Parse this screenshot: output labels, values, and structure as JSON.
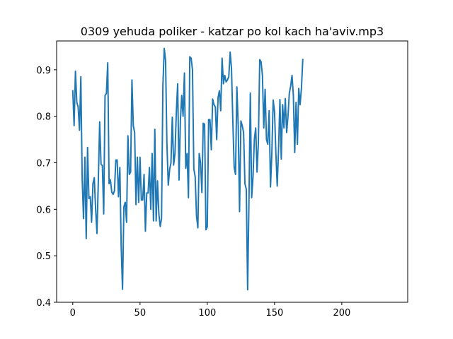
{
  "chart_data": {
    "type": "line",
    "title": "0309 yehuda poliker - katzar po kol kach ha'aviv.mp3",
    "xlabel": "",
    "ylabel": "",
    "xlim": [
      -12,
      249
    ],
    "ylim": [
      0.4,
      0.962
    ],
    "x_ticks": [
      0,
      50,
      100,
      150,
      200
    ],
    "y_ticks": [
      0.4,
      0.5,
      0.6,
      0.7,
      0.8,
      0.9
    ],
    "y_tick_labels": [
      "0.4",
      "0.5",
      "0.6",
      "0.7",
      "0.8",
      "0.9"
    ],
    "grid": false,
    "legend": "none",
    "line_color": "#1f77b4",
    "series": [
      {
        "values": [
          0.855,
          0.78,
          0.897,
          0.83,
          0.82,
          0.77,
          0.885,
          0.665,
          0.58,
          0.712,
          0.537,
          0.733,
          0.623,
          0.627,
          0.572,
          0.655,
          0.668,
          0.6,
          0.548,
          0.66,
          0.788,
          0.697,
          0.694,
          0.59,
          0.845,
          0.849,
          0.915,
          0.655,
          0.663,
          0.637,
          0.632,
          0.64,
          0.706,
          0.706,
          0.627,
          0.69,
          0.52,
          0.428,
          0.605,
          0.615,
          0.572,
          0.758,
          0.675,
          0.68,
          0.878,
          0.78,
          0.765,
          0.61,
          0.712,
          0.615,
          0.712,
          0.62,
          0.62,
          0.675,
          0.553,
          0.635,
          0.635,
          0.69,
          0.6,
          0.72,
          0.575,
          0.772,
          0.575,
          0.661,
          0.59,
          0.563,
          0.58,
          0.865,
          0.946,
          0.92,
          0.74,
          0.652,
          0.685,
          0.7,
          0.798,
          0.695,
          0.72,
          0.81,
          0.87,
          0.663,
          0.79,
          0.845,
          0.8,
          0.893,
          0.688,
          0.72,
          0.625,
          0.928,
          0.925,
          0.9,
          0.687,
          0.67,
          0.585,
          0.56,
          0.72,
          0.7,
          0.636,
          0.785,
          0.783,
          0.556,
          0.562,
          0.793,
          0.793,
          0.728,
          0.837,
          0.825,
          0.82,
          0.75,
          0.84,
          0.855,
          0.812,
          0.925,
          0.87,
          0.888,
          0.874,
          0.878,
          0.885,
          0.938,
          0.903,
          0.79,
          0.69,
          0.675,
          0.863,
          0.78,
          0.595,
          0.79,
          0.78,
          0.765,
          0.655,
          0.643,
          0.427,
          0.62,
          0.85,
          0.625,
          0.67,
          0.75,
          0.775,
          0.68,
          0.745,
          0.922,
          0.917,
          0.888,
          0.775,
          0.858,
          0.75,
          0.74,
          0.812,
          0.648,
          0.72,
          0.835,
          0.81,
          0.72,
          0.65,
          0.73,
          0.836,
          0.708,
          0.825,
          0.775,
          0.838,
          0.765,
          0.8,
          0.85,
          0.865,
          0.888,
          0.845,
          0.722,
          0.83,
          0.74,
          0.86,
          0.825,
          0.86,
          0.922
        ]
      }
    ]
  }
}
